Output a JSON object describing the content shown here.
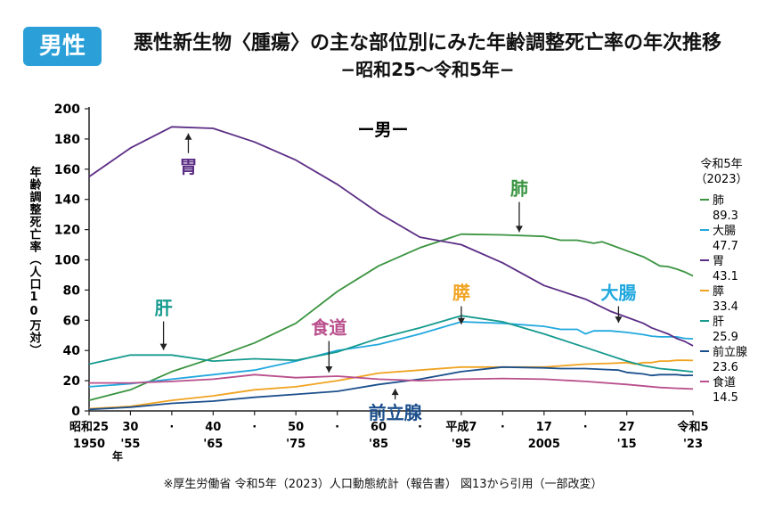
{
  "header": {
    "badge": "男性",
    "title": "悪性新生物〈腫瘍〉の主な部位別にみた年齢調整死亡率の年次推移",
    "subtitle": "−昭和25〜令和5年−"
  },
  "source_note": "※厚生労働省 令和5年（2023）人口動態統計（報告書） 図13から引用（一部改変）",
  "chart_data": {
    "type": "line",
    "panel_label": "ー男ー",
    "ylabel": "年齢調整死亡率（人口10万対）",
    "ylim": [
      0,
      200
    ],
    "yticks": [
      0,
      20,
      40,
      60,
      80,
      100,
      120,
      140,
      160,
      180,
      200
    ],
    "xlim": [
      1950,
      2023
    ],
    "xticks": [
      {
        "x": 1950,
        "top": "昭和25",
        "bottom": "1950"
      },
      {
        "x": 1955,
        "top": "30",
        "bottom": "'55"
      },
      {
        "x": 1960,
        "top": "·",
        "bottom": ""
      },
      {
        "x": 1965,
        "top": "40",
        "bottom": "'65"
      },
      {
        "x": 1970,
        "top": "·",
        "bottom": ""
      },
      {
        "x": 1975,
        "top": "50",
        "bottom": "'75"
      },
      {
        "x": 1980,
        "top": "·",
        "bottom": ""
      },
      {
        "x": 1985,
        "top": "60",
        "bottom": "'85"
      },
      {
        "x": 1990,
        "top": "·",
        "bottom": ""
      },
      {
        "x": 1995,
        "top": "平成7",
        "bottom": "'95"
      },
      {
        "x": 2000,
        "top": "·",
        "bottom": ""
      },
      {
        "x": 2005,
        "top": "17",
        "bottom": "2005"
      },
      {
        "x": 2010,
        "top": "·",
        "bottom": ""
      },
      {
        "x": 2015,
        "top": "27",
        "bottom": "'15"
      },
      {
        "x": 2023,
        "top": "令和5",
        "bottom": "'23"
      }
    ],
    "x_unit": "年",
    "grid": false,
    "legend": {
      "title": "令和5年\n（2023）",
      "placement": "right"
    },
    "series": [
      {
        "name": "肺",
        "end_value": "89.3",
        "color": "#3a9440",
        "points": [
          [
            1950,
            7
          ],
          [
            1955,
            14
          ],
          [
            1960,
            26
          ],
          [
            1965,
            35
          ],
          [
            1970,
            45
          ],
          [
            1975,
            58
          ],
          [
            1980,
            79
          ],
          [
            1985,
            96
          ],
          [
            1990,
            108
          ],
          [
            1995,
            117
          ],
          [
            2000,
            116.5
          ],
          [
            2005,
            115.5
          ],
          [
            2007,
            113
          ],
          [
            2009,
            113
          ],
          [
            2011,
            111
          ],
          [
            2012,
            112
          ],
          [
            2013,
            110
          ],
          [
            2015,
            106
          ],
          [
            2017,
            102
          ],
          [
            2018,
            99
          ],
          [
            2019,
            96
          ],
          [
            2020,
            95.5
          ],
          [
            2021,
            94
          ],
          [
            2022,
            92
          ],
          [
            2023,
            89.3
          ]
        ]
      },
      {
        "name": "大腸",
        "end_value": "47.7",
        "color": "#21a8de",
        "points": [
          [
            1950,
            16
          ],
          [
            1955,
            18
          ],
          [
            1960,
            21
          ],
          [
            1965,
            24
          ],
          [
            1970,
            27
          ],
          [
            1975,
            33
          ],
          [
            1980,
            40
          ],
          [
            1985,
            44
          ],
          [
            1990,
            51
          ],
          [
            1995,
            59
          ],
          [
            2000,
            58
          ],
          [
            2005,
            56
          ],
          [
            2007,
            54
          ],
          [
            2009,
            54
          ],
          [
            2010,
            51
          ],
          [
            2011,
            53
          ],
          [
            2013,
            53
          ],
          [
            2015,
            52
          ],
          [
            2017,
            50.5
          ],
          [
            2018,
            49.5
          ],
          [
            2019,
            49
          ],
          [
            2020,
            49
          ],
          [
            2021,
            49
          ],
          [
            2022,
            48
          ],
          [
            2023,
            47.7
          ]
        ]
      },
      {
        "name": "胃",
        "end_value": "43.1",
        "color": "#5b2d85",
        "points": [
          [
            1950,
            155
          ],
          [
            1955,
            174
          ],
          [
            1960,
            188
          ],
          [
            1965,
            187
          ],
          [
            1970,
            178
          ],
          [
            1975,
            166
          ],
          [
            1980,
            150
          ],
          [
            1985,
            131
          ],
          [
            1990,
            115
          ],
          [
            1995,
            110
          ],
          [
            2000,
            98
          ],
          [
            2005,
            83
          ],
          [
            2010,
            74
          ],
          [
            2013,
            66
          ],
          [
            2015,
            62
          ],
          [
            2017,
            58
          ],
          [
            2018,
            55
          ],
          [
            2019,
            53
          ],
          [
            2020,
            51
          ],
          [
            2021,
            48
          ],
          [
            2022,
            46
          ],
          [
            2023,
            43.1
          ]
        ]
      },
      {
        "name": "膵",
        "end_value": "33.4",
        "color": "#f0a321",
        "points": [
          [
            1950,
            1.5
          ],
          [
            1955,
            3
          ],
          [
            1960,
            7
          ],
          [
            1965,
            10
          ],
          [
            1970,
            14
          ],
          [
            1975,
            16
          ],
          [
            1980,
            20
          ],
          [
            1985,
            25
          ],
          [
            1990,
            27
          ],
          [
            1995,
            29
          ],
          [
            2000,
            29
          ],
          [
            2005,
            29
          ],
          [
            2010,
            31
          ],
          [
            2013,
            31.5
          ],
          [
            2015,
            32
          ],
          [
            2016,
            31
          ],
          [
            2017,
            32
          ],
          [
            2018,
            32
          ],
          [
            2019,
            33
          ],
          [
            2020,
            33
          ],
          [
            2021,
            33.5
          ],
          [
            2022,
            33.5
          ],
          [
            2023,
            33.4
          ]
        ]
      },
      {
        "name": "肝",
        "end_value": "25.9",
        "color": "#169a8e",
        "points": [
          [
            1950,
            31
          ],
          [
            1955,
            37
          ],
          [
            1960,
            37
          ],
          [
            1965,
            33
          ],
          [
            1970,
            34.5
          ],
          [
            1975,
            33.5
          ],
          [
            1980,
            39
          ],
          [
            1985,
            48
          ],
          [
            1990,
            55
          ],
          [
            1995,
            63
          ],
          [
            2000,
            59
          ],
          [
            2005,
            51
          ],
          [
            2010,
            42
          ],
          [
            2015,
            33
          ],
          [
            2017,
            30
          ],
          [
            2019,
            28
          ],
          [
            2021,
            27
          ],
          [
            2023,
            25.9
          ]
        ]
      },
      {
        "name": "前立腺",
        "end_value": "23.6",
        "color": "#1b4f8c",
        "points": [
          [
            1950,
            1
          ],
          [
            1955,
            2.5
          ],
          [
            1960,
            5
          ],
          [
            1965,
            6.5
          ],
          [
            1970,
            9
          ],
          [
            1975,
            11
          ],
          [
            1980,
            13
          ],
          [
            1985,
            17.5
          ],
          [
            1990,
            21
          ],
          [
            1995,
            26
          ],
          [
            2000,
            29
          ],
          [
            2005,
            28.5
          ],
          [
            2007,
            28
          ],
          [
            2010,
            28
          ],
          [
            2012,
            27.5
          ],
          [
            2014,
            27
          ],
          [
            2015,
            25.5
          ],
          [
            2017,
            24.5
          ],
          [
            2018,
            23.5
          ],
          [
            2019,
            24
          ],
          [
            2020,
            24
          ],
          [
            2021,
            24
          ],
          [
            2022,
            23.5
          ],
          [
            2023,
            23.6
          ]
        ]
      },
      {
        "name": "食道",
        "end_value": "14.5",
        "color": "#b94f8c",
        "points": [
          [
            1950,
            18.5
          ],
          [
            1955,
            18.5
          ],
          [
            1960,
            19.5
          ],
          [
            1965,
            21
          ],
          [
            1970,
            24
          ],
          [
            1975,
            22
          ],
          [
            1980,
            23
          ],
          [
            1985,
            21
          ],
          [
            1990,
            20
          ],
          [
            1995,
            21
          ],
          [
            2000,
            21.5
          ],
          [
            2005,
            21
          ],
          [
            2010,
            19.5
          ],
          [
            2015,
            17.5
          ],
          [
            2019,
            15.5
          ],
          [
            2021,
            15
          ],
          [
            2023,
            14.5
          ]
        ]
      }
    ],
    "annotations": [
      {
        "label": "胃",
        "series": "胃",
        "x": 1962,
        "y": 186,
        "label_y": 160
      },
      {
        "label": "肺",
        "series": "肺",
        "x": 2002,
        "y": 116,
        "label_y": 143
      },
      {
        "label": "大腸",
        "series": "大腸",
        "x": 2014,
        "y": 56,
        "label_y": 74
      },
      {
        "label": "膵",
        "series": "膵",
        "x": 1995,
        "y": 55,
        "label_y": 74
      },
      {
        "label": "食道",
        "series": "食道",
        "x": 1979,
        "y": 23,
        "label_y": 51
      },
      {
        "label": "肝",
        "series": "肝",
        "x": 1959,
        "y": 38,
        "label_y": 64
      },
      {
        "label": "前立腺",
        "series": "前立腺",
        "x": 1987,
        "y": 17,
        "label_y": -3
      }
    ]
  }
}
